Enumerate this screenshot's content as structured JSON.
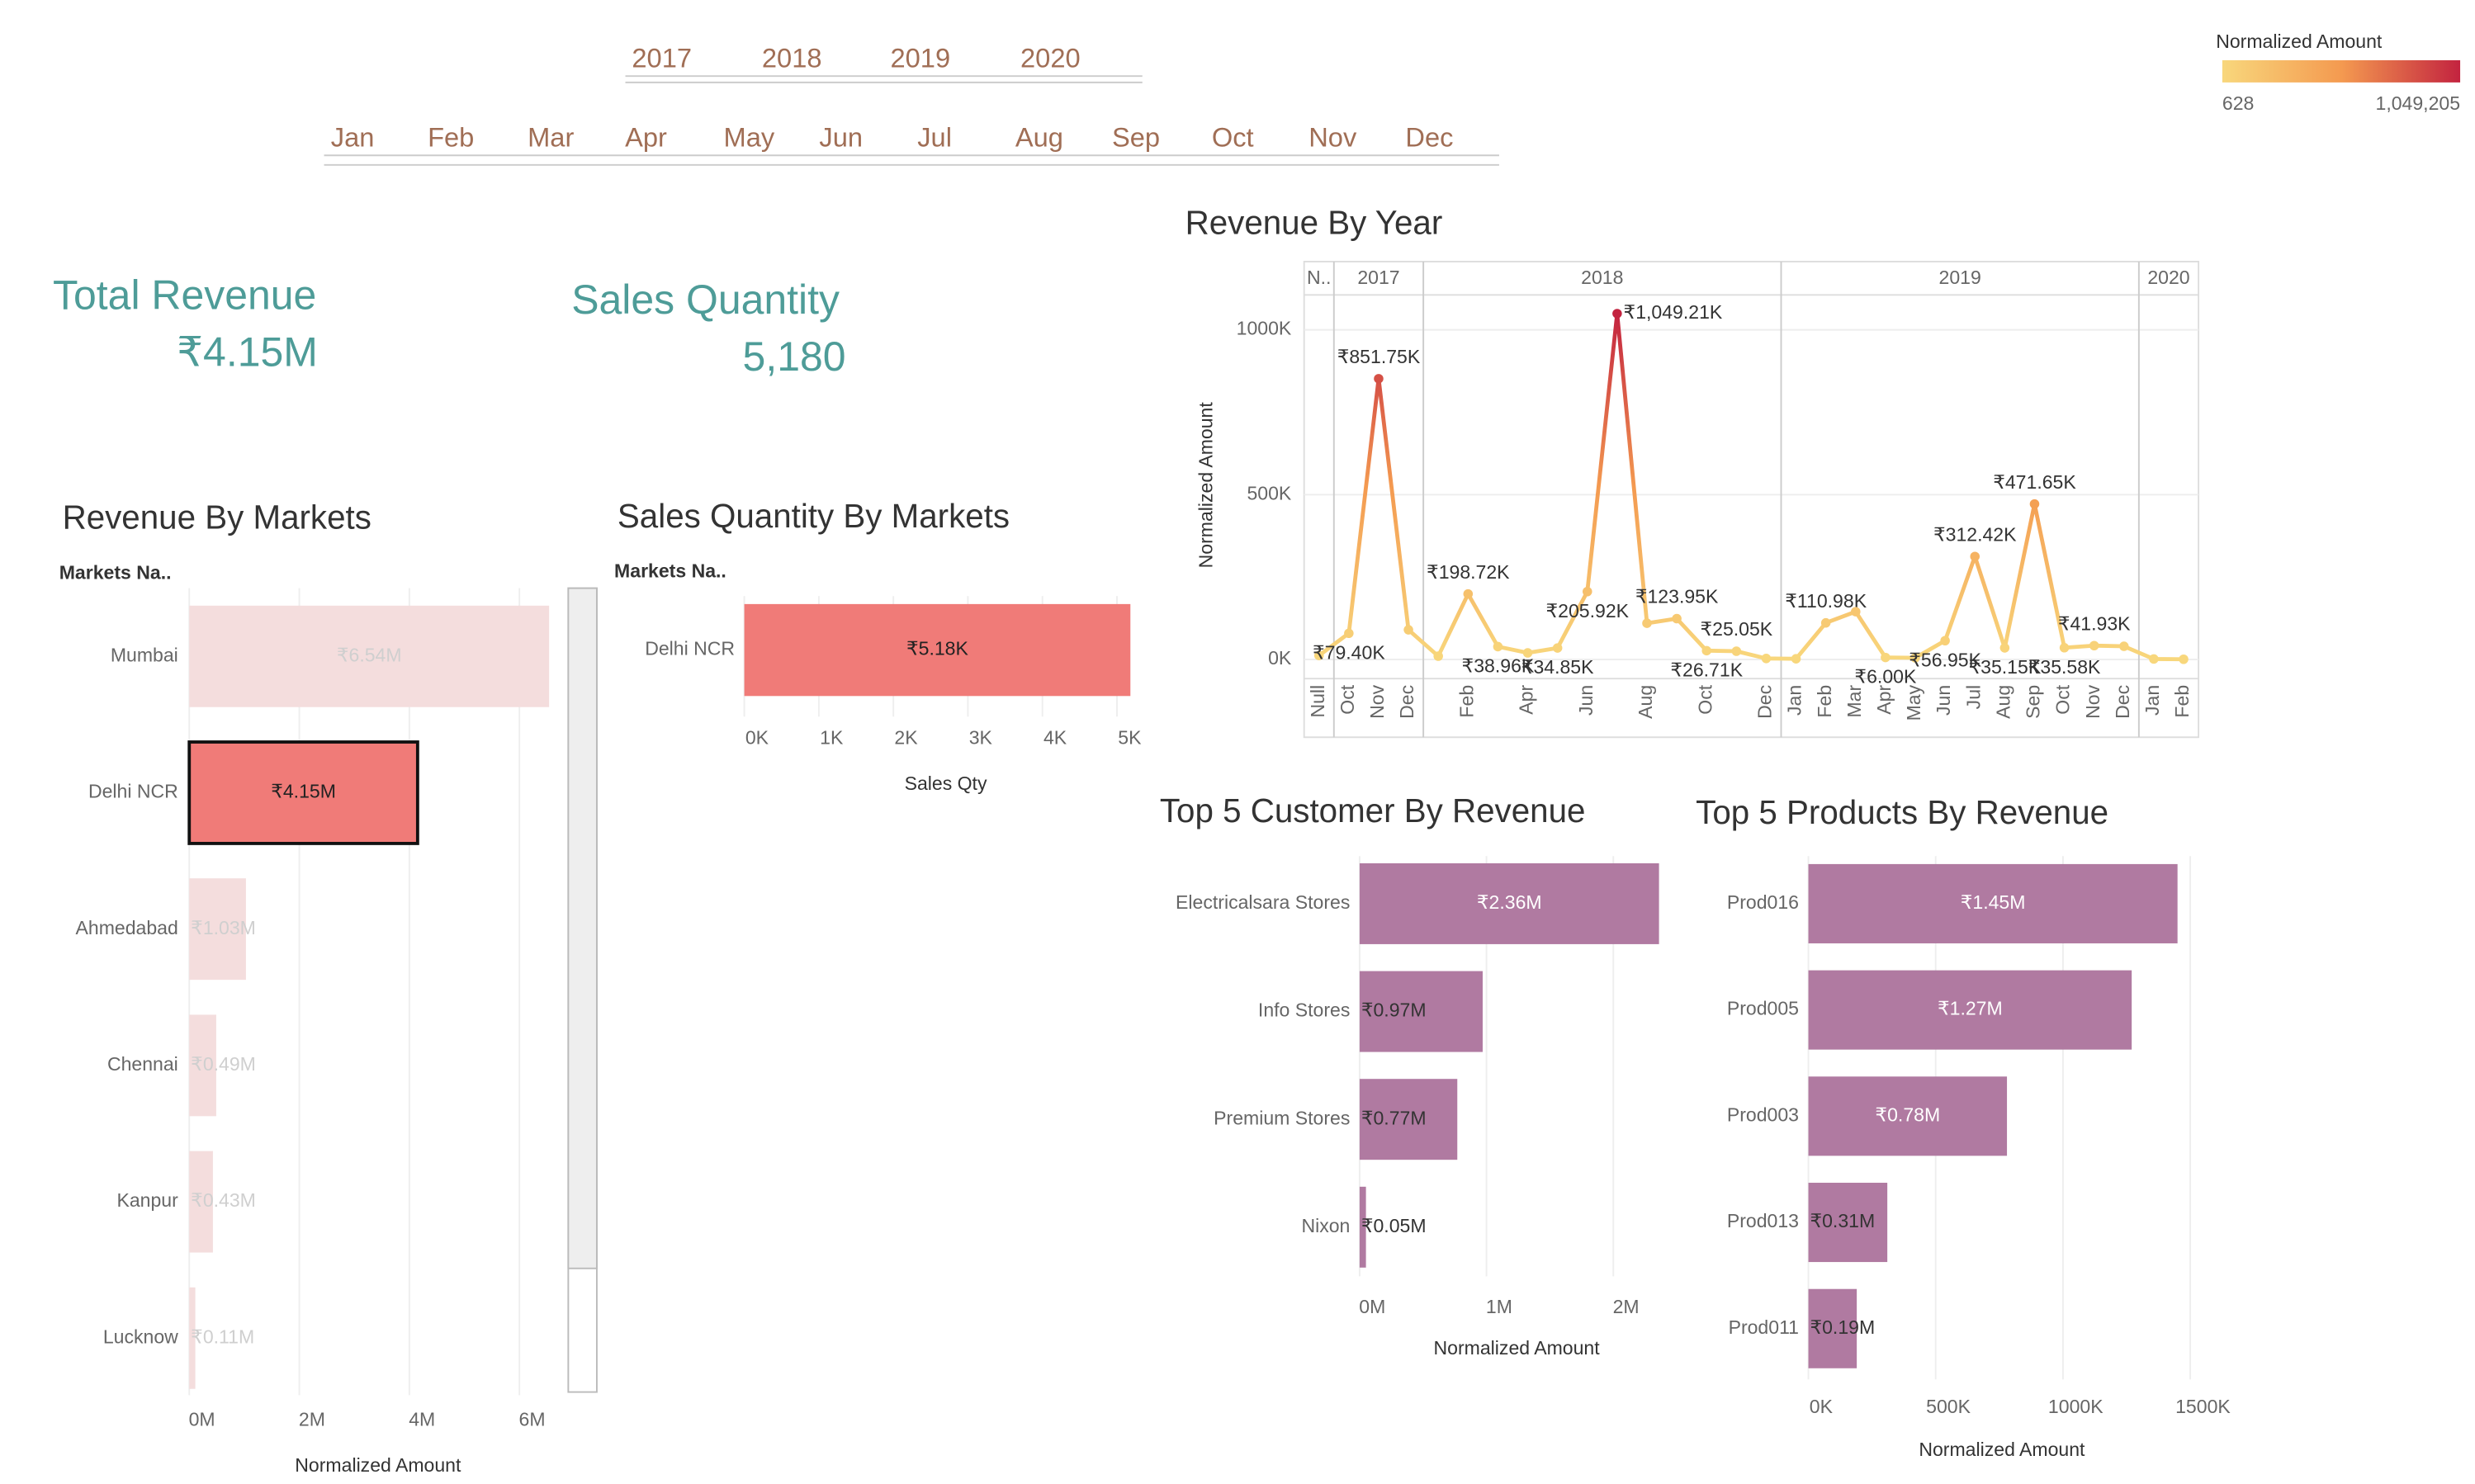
{
  "filters": {
    "years": [
      "2017",
      "2018",
      "2019",
      "2020"
    ],
    "months": [
      "Jan",
      "Feb",
      "Mar",
      "Apr",
      "May",
      "Jun",
      "Jul",
      "Aug",
      "Sep",
      "Oct",
      "Nov",
      "Dec"
    ]
  },
  "kpis": [
    {
      "title": "Total Revenue",
      "value": 4150000,
      "value_label": "₹4.15M"
    },
    {
      "title": "Sales Quantity",
      "value": 5180,
      "value_label": "5,180"
    }
  ],
  "chart_data": [
    {
      "type": "bar",
      "title": "Revenue By Markets",
      "y_header": "Markets Na..",
      "x_label": "Normalized Amount",
      "categories": [
        "Mumbai",
        "Delhi NCR",
        "Ahmedabad",
        "Chennai",
        "Kanpur",
        "Lucknow"
      ],
      "values": [
        6540000,
        4150000,
        1030000,
        490000,
        430000,
        110000
      ],
      "value_labels": [
        "₹6.54M",
        "₹4.15M",
        "₹1.03M",
        "₹0.49M",
        "₹0.43M",
        "₹0.11M"
      ],
      "color": "#f07b78",
      "faded_color": "#f4dddd",
      "selected": "Delhi NCR",
      "xlim": [
        0,
        6600000
      ],
      "xticks": [
        {
          "value": 0,
          "label": "0M"
        },
        {
          "value": 2000000,
          "label": "2M"
        },
        {
          "value": 4000000,
          "label": "4M"
        },
        {
          "value": 6000000,
          "label": "6M"
        }
      ],
      "grid": true
    },
    {
      "type": "bar",
      "title": "Sales Quantity By Markets",
      "y_header": "Markets Na..",
      "x_label": "Sales Qty",
      "categories": [
        "Delhi NCR"
      ],
      "values": [
        5180
      ],
      "value_labels": [
        "₹5.18K"
      ],
      "color": "#f07b78",
      "xlim": [
        0,
        5500
      ],
      "xticks": [
        {
          "value": 0,
          "label": "0K"
        },
        {
          "value": 1000,
          "label": "1K"
        },
        {
          "value": 2000,
          "label": "2K"
        },
        {
          "value": 3000,
          "label": "3K"
        },
        {
          "value": 4000,
          "label": "4K"
        },
        {
          "value": 5000,
          "label": "5K"
        }
      ],
      "grid": true
    },
    {
      "type": "line",
      "title": "Revenue By Year",
      "y_label": "Normalized Amount",
      "x_years": [
        "N..",
        "2017",
        "2017",
        "2017",
        "2018",
        "2018",
        "2018",
        "2018",
        "2018",
        "2018",
        "2018",
        "2018",
        "2018",
        "2018",
        "2018",
        "2018",
        "2019",
        "2019",
        "2019",
        "2019",
        "2019",
        "2019",
        "2019",
        "2019",
        "2019",
        "2019",
        "2019",
        "2019",
        "2020",
        "2020"
      ],
      "categories": [
        "Null",
        "Oct",
        "Nov",
        "Dec",
        null,
        "Feb",
        null,
        "Apr",
        null,
        "Jun",
        null,
        "Aug",
        null,
        "Oct",
        null,
        "Dec",
        "Jan",
        "Feb",
        "Mar",
        "Apr",
        "May",
        "Jun",
        "Jul",
        "Aug",
        "Sep",
        "Oct",
        "Nov",
        "Dec",
        "Jan",
        "Feb"
      ],
      "values": [
        12000,
        79400,
        851750,
        90000,
        10000,
        198720,
        38960,
        20000,
        34850,
        205920,
        1049210,
        110000,
        123950,
        26710,
        25050,
        3000,
        2000,
        110980,
        145000,
        6000,
        5000,
        56950,
        312420,
        35150,
        471650,
        35580,
        41930,
        40000,
        1450,
        628
      ],
      "value_labels": [
        null,
        "₹79.40K",
        "₹851.75K",
        null,
        null,
        "₹198.72K",
        "₹38.96K",
        null,
        "₹34.85K",
        "₹205.92K",
        "₹1,049.21K",
        null,
        "₹123.95K",
        "₹26.71K",
        "₹25.05K",
        null,
        null,
        "₹110.98K",
        null,
        "₹6.00K",
        null,
        "₹56.95K",
        "₹312.42K",
        "₹35.15K",
        "₹471.65K",
        "₹35.58K",
        "₹41.93K",
        null,
        null,
        null
      ],
      "ylim": [
        -58000,
        1106000
      ],
      "yticks": [
        {
          "value": 0,
          "label": "0K"
        },
        {
          "value": 500000,
          "label": "500K"
        },
        {
          "value": 1000000,
          "label": "1000K"
        }
      ],
      "grid": true,
      "color_legend": {
        "title": "Normalized Amount",
        "min": 628,
        "max": {
          "value": 1049205,
          "label": "1,049,205"
        },
        "colors": [
          "#f8d77c",
          "#f49a50",
          "#c3233f"
        ]
      }
    },
    {
      "type": "bar",
      "title": "Top 5 Customer By Revenue",
      "x_label": "Normalized Amount",
      "categories": [
        "Electricalsara Stores",
        "Info Stores",
        "Premium Stores",
        "Nixon"
      ],
      "values": [
        2360000,
        970000,
        770000,
        50000
      ],
      "value_labels": [
        "₹2.36M",
        "₹0.97M",
        "₹0.77M",
        "₹0.05M"
      ],
      "color": "#b07aa1",
      "xlim": [
        0,
        2500000
      ],
      "xticks": [
        {
          "value": 0,
          "label": "0M"
        },
        {
          "value": 1000000,
          "label": "1M"
        },
        {
          "value": 2000000,
          "label": "2M"
        }
      ],
      "grid": true
    },
    {
      "type": "bar",
      "title": "Top 5 Products By Revenue",
      "x_label": "Normalized Amount",
      "categories": [
        "Prod016",
        "Prod005",
        "Prod003",
        "Prod013",
        "Prod011"
      ],
      "values": [
        1450000,
        1270000,
        780000,
        310000,
        190000
      ],
      "value_labels": [
        "₹1.45M",
        "₹1.27M",
        "₹0.78M",
        "₹0.31M",
        "₹0.19M"
      ],
      "color": "#b07aa1",
      "xlim": [
        0,
        1520000
      ],
      "xticks": [
        {
          "value": 0,
          "label": "0K"
        },
        {
          "value": 500000,
          "label": "500K"
        },
        {
          "value": 1000000,
          "label": "1000K"
        },
        {
          "value": 1500000,
          "label": "1500K"
        }
      ],
      "grid": true
    }
  ]
}
